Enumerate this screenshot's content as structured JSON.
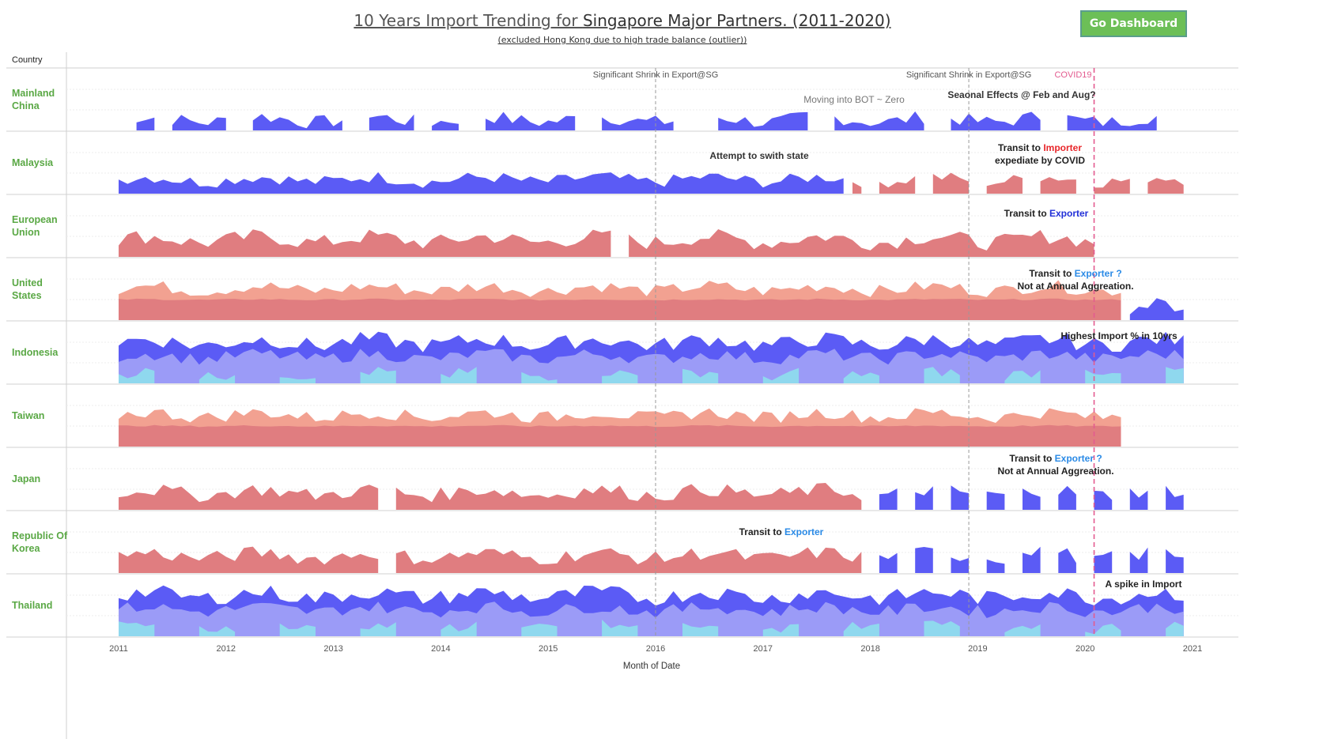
{
  "header": {
    "title_prefix": "10 Years Import Trending for ",
    "title_highlight": "Singapore Major Partners. (2011-2020)",
    "subtitle": "(excluded Hong Kong due to high trade balance (outlier))",
    "button_label": "Go Dashboard"
  },
  "chart_data": {
    "type": "area",
    "row_header": "Country",
    "xlabel": "Month of Date",
    "x_ticks": [
      "2011",
      "2012",
      "2013",
      "2014",
      "2015",
      "2016",
      "2017",
      "2018",
      "2019",
      "2020",
      "2021"
    ],
    "grid": "horizontal dotted, vertical year dividers",
    "reference_lines": [
      {
        "date": "2016-01",
        "label": "Significant Shrink in Export@SG",
        "style": "dashed-gray"
      },
      {
        "date": "2018-12",
        "label": "Significant Shrink in Export@SG",
        "style": "dashed-gray"
      },
      {
        "date": "2020-02",
        "label": "COVID19",
        "style": "dashed-pink"
      }
    ],
    "colors": {
      "exporter_dark": "#5b5bf5",
      "exporter_mid": "#9b9bf7",
      "exporter_light": "#8fd8ee",
      "importer_dark": "#e07d80",
      "importer_light": "#f2a191",
      "country_label": "#5aa845",
      "covid": "#e35b8f"
    },
    "countries": [
      {
        "name": "Mainland China",
        "lines": [
          "Mainland",
          "China"
        ],
        "pattern": "sparse-blue"
      },
      {
        "name": "Malaysia",
        "lines": [
          "Malaysia"
        ],
        "pattern": "blue-then-red"
      },
      {
        "name": "European Union",
        "lines": [
          "European",
          "Union"
        ],
        "pattern": "red"
      },
      {
        "name": "United States",
        "lines": [
          "United",
          "States"
        ],
        "pattern": "red-two-tone"
      },
      {
        "name": "Indonesia",
        "lines": [
          "Indonesia"
        ],
        "pattern": "blue-three-tone"
      },
      {
        "name": "Taiwan",
        "lines": [
          "Taiwan"
        ],
        "pattern": "red-two-tone"
      },
      {
        "name": "Japan",
        "lines": [
          "Japan"
        ],
        "pattern": "red-then-blue"
      },
      {
        "name": "Republic Of Korea",
        "lines": [
          "Republic Of",
          "Korea"
        ],
        "pattern": "red-then-blue"
      },
      {
        "name": "Thailand",
        "lines": [
          "Thailand"
        ],
        "pattern": "blue-three-tone"
      }
    ],
    "annotations": [
      {
        "row": 0,
        "parts": [
          {
            "t": "Moving into BOT ~ Zero",
            "c": "#777"
          }
        ]
      },
      {
        "row": 0,
        "parts": [
          {
            "t": "Seaonal Effects @ Feb and Aug?",
            "c": "#333"
          }
        ]
      },
      {
        "row": 1,
        "parts": [
          {
            "t": "Attempt to swith state",
            "c": "#333"
          }
        ]
      },
      {
        "row": 1,
        "parts": [
          {
            "t": "Transit to ",
            "c": "#222"
          },
          {
            "t": "Importer",
            "c": "#e8262a"
          }
        ]
      },
      {
        "row": 1,
        "parts": [
          {
            "t": "expediate by COVID",
            "c": "#222"
          }
        ]
      },
      {
        "row": 2,
        "parts": [
          {
            "t": "Transit to ",
            "c": "#222"
          },
          {
            "t": "Exporter",
            "c": "#2230d8"
          }
        ]
      },
      {
        "row": 3,
        "parts": [
          {
            "t": "Transit to ",
            "c": "#222"
          },
          {
            "t": "Exporter ?",
            "c": "#2a8ae6"
          }
        ]
      },
      {
        "row": 3,
        "parts": [
          {
            "t": "Not at Annual Aggreation.",
            "c": "#222"
          }
        ]
      },
      {
        "row": 4,
        "parts": [
          {
            "t": "Highest Import % in 10yrs",
            "c": "#222"
          }
        ]
      },
      {
        "row": 6,
        "parts": [
          {
            "t": "Transit to ",
            "c": "#222"
          },
          {
            "t": "Exporter ?",
            "c": "#2a8ae6"
          }
        ]
      },
      {
        "row": 6,
        "parts": [
          {
            "t": "Not at Annual Aggreation.",
            "c": "#222"
          }
        ]
      },
      {
        "row": 7,
        "parts": [
          {
            "t": "Transit to ",
            "c": "#222"
          },
          {
            "t": "Exporter",
            "c": "#2a8ae6"
          }
        ]
      },
      {
        "row": 8,
        "parts": [
          {
            "t": "A spike in Import",
            "c": "#222"
          }
        ]
      }
    ]
  }
}
